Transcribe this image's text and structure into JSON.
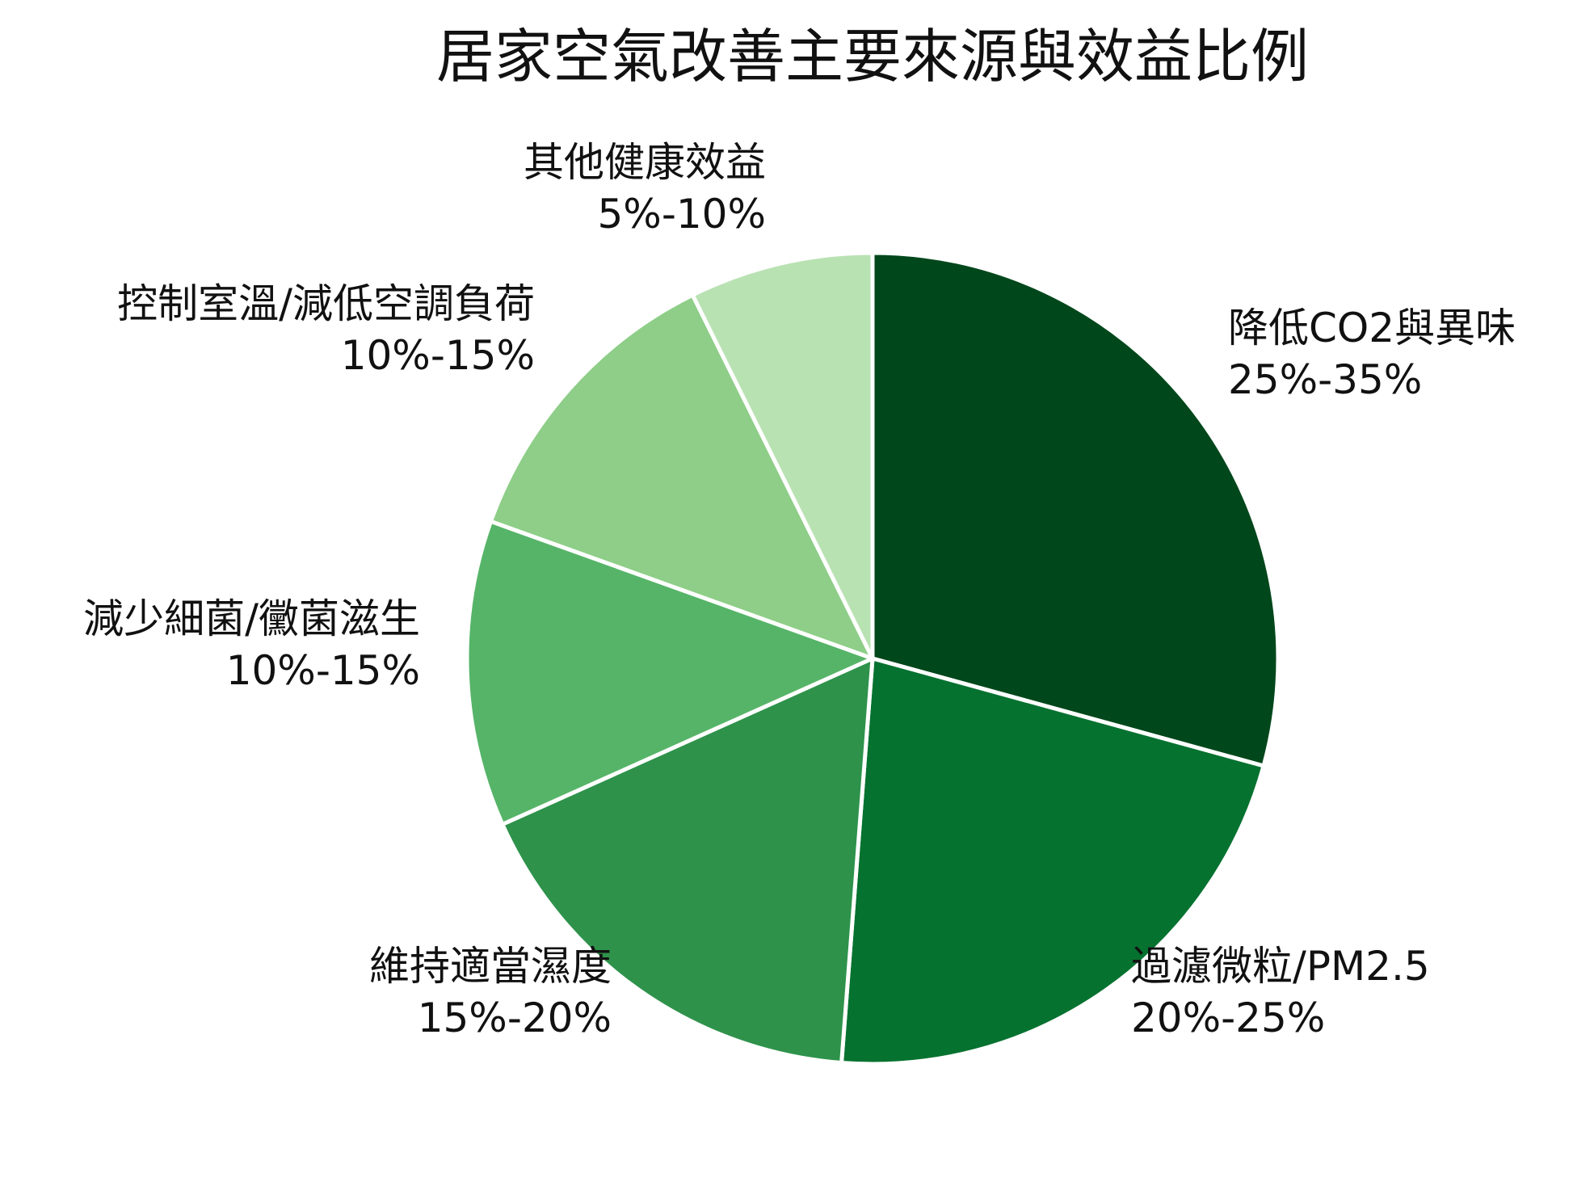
{
  "chart_data": {
    "type": "pie",
    "title": "居家空氣改善主要來源與效益比例",
    "start_angle_deg": 0,
    "direction": "clockwise",
    "slices": [
      {
        "label": "降低CO2與異味",
        "range_label": "25%-35%",
        "value": 30,
        "color": "#00471b"
      },
      {
        "label": "過濾微粒/PM2.5",
        "range_label": "20%-25%",
        "value": 22.5,
        "color": "#067230"
      },
      {
        "label": "維持適當濕度",
        "range_label": "15%-20%",
        "value": 17.5,
        "color": "#2e924b"
      },
      {
        "label": "減少細菌/黴菌滋生",
        "range_label": "10%-15%",
        "value": 12.5,
        "color": "#56b468"
      },
      {
        "label": "控制室溫/減低空調負荷",
        "range_label": "10%-15%",
        "value": 12.5,
        "color": "#8ece88"
      },
      {
        "label": "其他健康效益",
        "range_label": "5%-10%",
        "value": 7.5,
        "color": "#b9e2b3"
      }
    ]
  }
}
